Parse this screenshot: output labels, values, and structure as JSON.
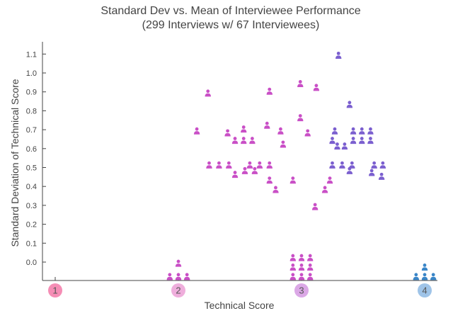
{
  "colors": {
    "magenta": "#c94fc6",
    "violet": "#7b5fcf",
    "blue": "#3a86c8",
    "axis": "#444444",
    "x1": "#f58db5",
    "x2": "#efaedc",
    "x3": "#dba8e6",
    "x4": "#9fc4e8"
  },
  "chart_data": {
    "type": "scatter",
    "title": "Standard Dev vs. Mean of Interviewee Performance",
    "subtitle": "(299 Interviews w/ 67 Interviewees)",
    "xlabel": "Technical Score",
    "ylabel": "Standard Deviation of Technical Score",
    "xlim": [
      1,
      4
    ],
    "ylim": [
      -0.15,
      1.15
    ],
    "x_ticks": [
      "1",
      "2",
      "3",
      "4"
    ],
    "y_ticks": [
      "0.0",
      "0.1",
      "0.2",
      "0.3",
      "0.4",
      "0.5",
      "0.6",
      "0.7",
      "0.8",
      "0.9",
      "1.0",
      "1.1"
    ],
    "marker": "person-icon",
    "grid": false,
    "series": [
      {
        "color": "magenta",
        "points": [
          [
            1.93,
            -0.08
          ],
          [
            2.0,
            -0.08
          ],
          [
            2.07,
            -0.08
          ],
          [
            2.0,
            -0.01
          ],
          [
            2.15,
            0.69
          ],
          [
            2.24,
            0.89
          ],
          [
            2.25,
            0.51
          ],
          [
            2.33,
            0.51
          ],
          [
            2.41,
            0.51
          ],
          [
            2.58,
            0.51
          ],
          [
            2.66,
            0.51
          ],
          [
            2.74,
            0.51
          ],
          [
            2.4,
            0.68
          ],
          [
            2.46,
            0.64
          ],
          [
            2.53,
            0.7
          ],
          [
            2.53,
            0.64
          ],
          [
            2.6,
            0.64
          ],
          [
            2.46,
            0.46
          ],
          [
            2.54,
            0.48
          ],
          [
            2.62,
            0.48
          ],
          [
            2.72,
            0.72
          ],
          [
            2.74,
            0.9
          ],
          [
            2.83,
            0.69
          ],
          [
            2.85,
            0.62
          ],
          [
            2.74,
            0.43
          ],
          [
            2.79,
            0.38
          ],
          [
            2.93,
            0.43
          ],
          [
            2.99,
            0.94
          ],
          [
            3.12,
            0.92
          ],
          [
            2.99,
            0.76
          ],
          [
            3.05,
            0.68
          ],
          [
            3.11,
            0.29
          ],
          [
            3.19,
            0.38
          ],
          [
            3.23,
            0.43
          ],
          [
            2.93,
            -0.08
          ],
          [
            3.0,
            -0.08
          ],
          [
            3.07,
            -0.08
          ],
          [
            2.93,
            -0.03
          ],
          [
            3.0,
            -0.03
          ],
          [
            3.07,
            -0.03
          ],
          [
            2.93,
            0.02
          ],
          [
            3.0,
            0.02
          ],
          [
            3.07,
            0.02
          ]
        ]
      },
      {
        "color": "violet",
        "points": [
          [
            3.3,
            1.09
          ],
          [
            3.39,
            0.83
          ],
          [
            3.27,
            0.69
          ],
          [
            3.25,
            0.64
          ],
          [
            3.29,
            0.61
          ],
          [
            3.35,
            0.61
          ],
          [
            3.42,
            0.69
          ],
          [
            3.49,
            0.69
          ],
          [
            3.56,
            0.69
          ],
          [
            3.42,
            0.64
          ],
          [
            3.49,
            0.64
          ],
          [
            3.56,
            0.64
          ],
          [
            3.25,
            0.51
          ],
          [
            3.33,
            0.51
          ],
          [
            3.41,
            0.51
          ],
          [
            3.39,
            0.48
          ],
          [
            3.59,
            0.51
          ],
          [
            3.66,
            0.51
          ],
          [
            3.57,
            0.47
          ],
          [
            3.65,
            0.45
          ]
        ]
      },
      {
        "color": "blue",
        "points": [
          [
            3.93,
            -0.08
          ],
          [
            4.0,
            -0.08
          ],
          [
            4.07,
            -0.08
          ],
          [
            4.0,
            -0.03
          ]
        ]
      }
    ]
  }
}
